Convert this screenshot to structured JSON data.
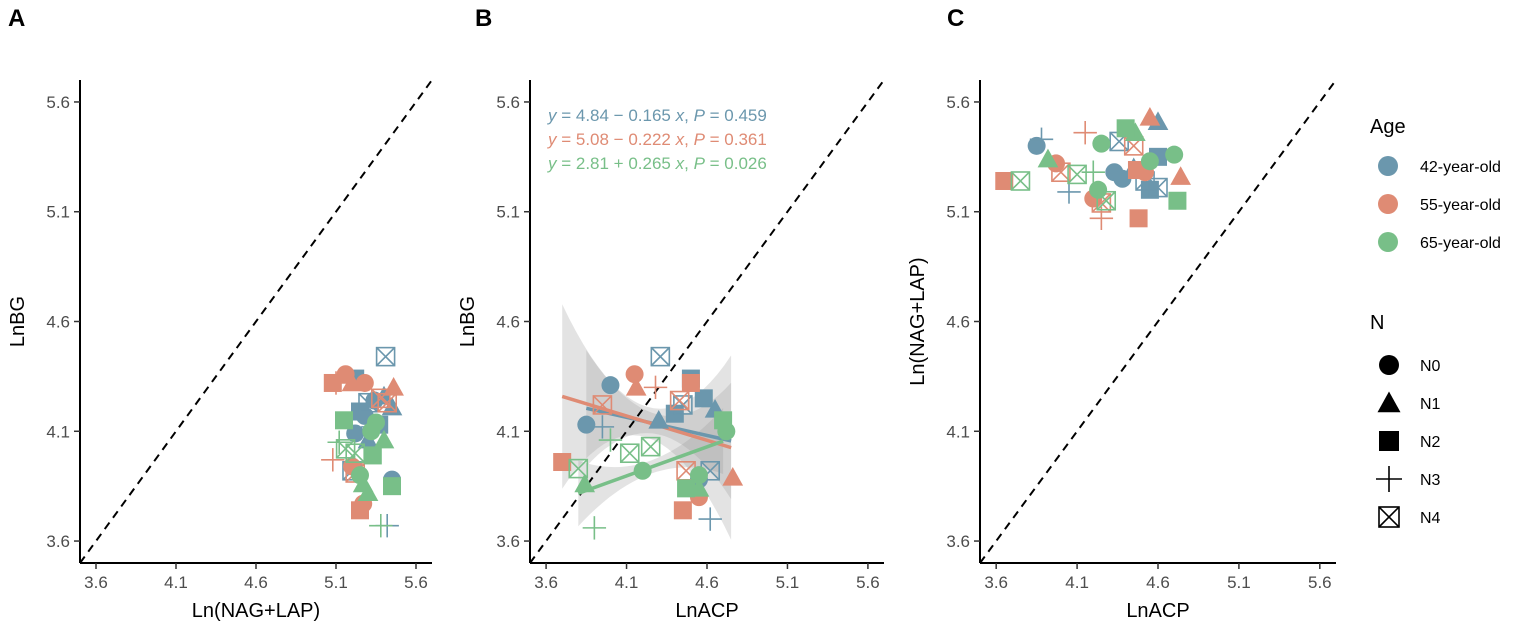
{
  "colors": {
    "42": "#6b97ad",
    "55": "#df8b74",
    "65": "#78bf88",
    "ink": "#000000",
    "tick": "#4d4d4d"
  },
  "chart_data": [
    {
      "panel": "A",
      "type": "scatter",
      "xlabel": "Ln(NAG+LAP)",
      "ylabel": "LnBG",
      "xlim": [
        3.5,
        5.7
      ],
      "ylim": [
        3.5,
        5.7
      ],
      "xticks": [
        "3.6",
        "4.1",
        "4.6",
        "5.1",
        "5.6"
      ],
      "yticks": [
        "3.6",
        "4.1",
        "4.6",
        "5.1",
        "5.6"
      ],
      "reference_line": "y = x (dashed)",
      "points": [
        {
          "x": 5.34,
          "y": 4.24,
          "age": "42",
          "n": "N0"
        },
        {
          "x": 5.28,
          "y": 4.17,
          "age": "42",
          "n": "N0"
        },
        {
          "x": 5.22,
          "y": 4.09,
          "age": "42",
          "n": "N0"
        },
        {
          "x": 5.45,
          "y": 3.88,
          "age": "42",
          "n": "N0"
        },
        {
          "x": 5.4,
          "y": 4.26,
          "age": "42",
          "n": "N1"
        },
        {
          "x": 5.45,
          "y": 4.21,
          "age": "42",
          "n": "N1"
        },
        {
          "x": 5.3,
          "y": 4.06,
          "age": "42",
          "n": "N1"
        },
        {
          "x": 5.22,
          "y": 4.34,
          "age": "42",
          "n": "N2"
        },
        {
          "x": 5.25,
          "y": 4.19,
          "age": "42",
          "n": "N2"
        },
        {
          "x": 5.37,
          "y": 4.13,
          "age": "42",
          "n": "N2"
        },
        {
          "x": 5.33,
          "y": 4.12,
          "age": "42",
          "n": "N3"
        },
        {
          "x": 5.42,
          "y": 3.67,
          "age": "42",
          "n": "N3"
        },
        {
          "x": 5.41,
          "y": 4.44,
          "age": "42",
          "n": "N4"
        },
        {
          "x": 5.3,
          "y": 4.23,
          "age": "42",
          "n": "N4"
        },
        {
          "x": 5.2,
          "y": 3.92,
          "age": "42",
          "n": "N4"
        },
        {
          "x": 5.16,
          "y": 4.36,
          "age": "55",
          "n": "N0"
        },
        {
          "x": 5.28,
          "y": 4.32,
          "age": "55",
          "n": "N0"
        },
        {
          "x": 5.2,
          "y": 3.94,
          "age": "55",
          "n": "N0"
        },
        {
          "x": 5.27,
          "y": 3.77,
          "age": "55",
          "n": "N0"
        },
        {
          "x": 5.2,
          "y": 4.32,
          "age": "55",
          "n": "N1"
        },
        {
          "x": 5.46,
          "y": 4.3,
          "age": "55",
          "n": "N1"
        },
        {
          "x": 5.08,
          "y": 4.32,
          "age": "55",
          "n": "N2"
        },
        {
          "x": 5.25,
          "y": 3.74,
          "age": "55",
          "n": "N2"
        },
        {
          "x": 5.1,
          "y": 4.32,
          "age": "55",
          "n": "N3"
        },
        {
          "x": 5.08,
          "y": 3.97,
          "age": "55",
          "n": "N3"
        },
        {
          "x": 5.38,
          "y": 4.25,
          "age": "55",
          "n": "N4"
        },
        {
          "x": 5.42,
          "y": 4.23,
          "age": "55",
          "n": "N4"
        },
        {
          "x": 5.22,
          "y": 3.91,
          "age": "55",
          "n": "N4"
        },
        {
          "x": 5.35,
          "y": 4.14,
          "age": "65",
          "n": "N0"
        },
        {
          "x": 5.32,
          "y": 4.1,
          "age": "65",
          "n": "N0"
        },
        {
          "x": 5.25,
          "y": 3.9,
          "age": "65",
          "n": "N0"
        },
        {
          "x": 5.4,
          "y": 4.06,
          "age": "65",
          "n": "N1"
        },
        {
          "x": 5.27,
          "y": 3.86,
          "age": "65",
          "n": "N1"
        },
        {
          "x": 5.3,
          "y": 3.82,
          "age": "65",
          "n": "N1"
        },
        {
          "x": 5.15,
          "y": 4.15,
          "age": "65",
          "n": "N2"
        },
        {
          "x": 5.33,
          "y": 3.99,
          "age": "65",
          "n": "N2"
        },
        {
          "x": 5.45,
          "y": 3.85,
          "age": "65",
          "n": "N2"
        },
        {
          "x": 5.12,
          "y": 4.05,
          "age": "65",
          "n": "N3"
        },
        {
          "x": 5.38,
          "y": 3.67,
          "age": "65",
          "n": "N3"
        },
        {
          "x": 5.16,
          "y": 4.02,
          "age": "65",
          "n": "N4"
        },
        {
          "x": 5.22,
          "y": 4.0,
          "age": "65",
          "n": "N4"
        }
      ]
    },
    {
      "panel": "B",
      "type": "scatter",
      "xlabel": "LnACP",
      "ylabel": "LnBG",
      "xlim": [
        3.5,
        5.7
      ],
      "ylim": [
        3.5,
        5.7
      ],
      "xticks": [
        "3.6",
        "4.1",
        "4.6",
        "5.1",
        "5.6"
      ],
      "yticks": [
        "3.6",
        "4.1",
        "4.6",
        "5.1",
        "5.6"
      ],
      "reference_line": "y = x (dashed)",
      "regressions": [
        {
          "age": "42",
          "intercept": 4.84,
          "slope": -0.165,
          "x_range": [
            3.85,
            4.75
          ],
          "ci_halfwidth": [
            0.22,
            0.18
          ]
        },
        {
          "age": "55",
          "intercept": 5.08,
          "slope": -0.222,
          "x_range": [
            3.7,
            4.75
          ],
          "ci_halfwidth": [
            0.35,
            0.28
          ]
        },
        {
          "age": "65",
          "intercept": 2.81,
          "slope": 0.265,
          "x_range": [
            3.8,
            4.7
          ],
          "ci_halfwidth": [
            0.12,
            0.12
          ]
        }
      ],
      "equations": [
        {
          "age": "42",
          "y": "y",
          "eq": " = 4.84 − 0.165 ",
          "x": "x",
          "p": "P",
          "pval": " = 0.459"
        },
        {
          "age": "55",
          "y": "y",
          "eq": " = 5.08 − 0.222 ",
          "x": "x",
          "p": "P",
          "pval": " = 0.361"
        },
        {
          "age": "65",
          "y": "y",
          "eq": " = 2.81 + 0.265 ",
          "x": "x",
          "p": "P",
          "pval": " = 0.026"
        }
      ],
      "points": [
        {
          "x": 4.0,
          "y": 4.31,
          "age": "42",
          "n": "N0"
        },
        {
          "x": 3.85,
          "y": 4.13,
          "age": "42",
          "n": "N0"
        },
        {
          "x": 4.55,
          "y": 3.88,
          "age": "42",
          "n": "N0"
        },
        {
          "x": 4.3,
          "y": 4.15,
          "age": "42",
          "n": "N1"
        },
        {
          "x": 4.65,
          "y": 4.2,
          "age": "42",
          "n": "N1"
        },
        {
          "x": 4.5,
          "y": 4.34,
          "age": "42",
          "n": "N2"
        },
        {
          "x": 4.58,
          "y": 4.25,
          "age": "42",
          "n": "N2"
        },
        {
          "x": 4.4,
          "y": 4.18,
          "age": "42",
          "n": "N2"
        },
        {
          "x": 3.95,
          "y": 4.12,
          "age": "42",
          "n": "N3"
        },
        {
          "x": 4.62,
          "y": 3.7,
          "age": "42",
          "n": "N3"
        },
        {
          "x": 4.31,
          "y": 4.44,
          "age": "42",
          "n": "N4"
        },
        {
          "x": 4.62,
          "y": 3.92,
          "age": "42",
          "n": "N4"
        },
        {
          "x": 4.45,
          "y": 4.22,
          "age": "42",
          "n": "N4"
        },
        {
          "x": 4.15,
          "y": 4.36,
          "age": "55",
          "n": "N0"
        },
        {
          "x": 4.55,
          "y": 3.8,
          "age": "55",
          "n": "N0"
        },
        {
          "x": 4.16,
          "y": 4.3,
          "age": "55",
          "n": "N1"
        },
        {
          "x": 4.76,
          "y": 3.89,
          "age": "55",
          "n": "N1"
        },
        {
          "x": 3.7,
          "y": 3.96,
          "age": "55",
          "n": "N2"
        },
        {
          "x": 4.5,
          "y": 4.32,
          "age": "55",
          "n": "N2"
        },
        {
          "x": 4.45,
          "y": 3.74,
          "age": "55",
          "n": "N2"
        },
        {
          "x": 4.28,
          "y": 4.3,
          "age": "55",
          "n": "N3"
        },
        {
          "x": 4.43,
          "y": 4.24,
          "age": "55",
          "n": "N4"
        },
        {
          "x": 3.95,
          "y": 4.22,
          "age": "55",
          "n": "N4"
        },
        {
          "x": 4.47,
          "y": 3.92,
          "age": "55",
          "n": "N4"
        },
        {
          "x": 4.2,
          "y": 3.92,
          "age": "65",
          "n": "N0"
        },
        {
          "x": 4.72,
          "y": 4.1,
          "age": "65",
          "n": "N0"
        },
        {
          "x": 4.55,
          "y": 3.9,
          "age": "65",
          "n": "N0"
        },
        {
          "x": 3.84,
          "y": 3.86,
          "age": "65",
          "n": "N1"
        },
        {
          "x": 4.55,
          "y": 3.84,
          "age": "65",
          "n": "N1"
        },
        {
          "x": 4.7,
          "y": 4.15,
          "age": "65",
          "n": "N2"
        },
        {
          "x": 4.47,
          "y": 3.84,
          "age": "65",
          "n": "N2"
        },
        {
          "x": 3.9,
          "y": 3.66,
          "age": "65",
          "n": "N3"
        },
        {
          "x": 4.0,
          "y": 4.06,
          "age": "65",
          "n": "N3"
        },
        {
          "x": 3.8,
          "y": 3.93,
          "age": "65",
          "n": "N4"
        },
        {
          "x": 4.12,
          "y": 4.0,
          "age": "65",
          "n": "N4"
        },
        {
          "x": 4.25,
          "y": 4.03,
          "age": "65",
          "n": "N4"
        }
      ]
    },
    {
      "panel": "C",
      "type": "scatter",
      "xlabel": "LnACP",
      "ylabel": "Ln(NAG+LAP)",
      "xlim": [
        3.5,
        5.7
      ],
      "ylim": [
        3.5,
        5.7
      ],
      "xticks": [
        "3.6",
        "4.1",
        "4.6",
        "5.1",
        "5.6"
      ],
      "yticks": [
        "3.6",
        "4.1",
        "4.6",
        "5.1",
        "5.6"
      ],
      "reference_line": "y = x (dashed)",
      "points": [
        {
          "x": 3.85,
          "y": 5.4,
          "age": "42",
          "n": "N0"
        },
        {
          "x": 4.33,
          "y": 5.28,
          "age": "42",
          "n": "N0"
        },
        {
          "x": 4.38,
          "y": 5.25,
          "age": "42",
          "n": "N0"
        },
        {
          "x": 4.6,
          "y": 5.51,
          "age": "42",
          "n": "N1"
        },
        {
          "x": 4.45,
          "y": 5.3,
          "age": "42",
          "n": "N1"
        },
        {
          "x": 4.55,
          "y": 5.2,
          "age": "42",
          "n": "N2"
        },
        {
          "x": 4.6,
          "y": 5.35,
          "age": "42",
          "n": "N2"
        },
        {
          "x": 3.88,
          "y": 5.43,
          "age": "42",
          "n": "N3"
        },
        {
          "x": 4.05,
          "y": 5.19,
          "age": "42",
          "n": "N3"
        },
        {
          "x": 4.36,
          "y": 5.42,
          "age": "42",
          "n": "N4"
        },
        {
          "x": 4.52,
          "y": 5.24,
          "age": "42",
          "n": "N4"
        },
        {
          "x": 4.6,
          "y": 5.21,
          "age": "42",
          "n": "N4"
        },
        {
          "x": 3.97,
          "y": 5.32,
          "age": "55",
          "n": "N0"
        },
        {
          "x": 4.52,
          "y": 5.28,
          "age": "55",
          "n": "N0"
        },
        {
          "x": 4.2,
          "y": 5.16,
          "age": "55",
          "n": "N0"
        },
        {
          "x": 4.55,
          "y": 5.53,
          "age": "55",
          "n": "N1"
        },
        {
          "x": 4.74,
          "y": 5.26,
          "age": "55",
          "n": "N1"
        },
        {
          "x": 3.65,
          "y": 5.24,
          "age": "55",
          "n": "N2"
        },
        {
          "x": 4.48,
          "y": 5.07,
          "age": "55",
          "n": "N2"
        },
        {
          "x": 4.47,
          "y": 5.29,
          "age": "55",
          "n": "N2"
        },
        {
          "x": 4.15,
          "y": 5.46,
          "age": "55",
          "n": "N3"
        },
        {
          "x": 4.25,
          "y": 5.07,
          "age": "55",
          "n": "N3"
        },
        {
          "x": 4.0,
          "y": 5.28,
          "age": "55",
          "n": "N4"
        },
        {
          "x": 4.45,
          "y": 5.4,
          "age": "55",
          "n": "N4"
        },
        {
          "x": 4.25,
          "y": 5.14,
          "age": "55",
          "n": "N4"
        },
        {
          "x": 4.25,
          "y": 5.41,
          "age": "65",
          "n": "N0"
        },
        {
          "x": 4.7,
          "y": 5.36,
          "age": "65",
          "n": "N0"
        },
        {
          "x": 4.55,
          "y": 5.33,
          "age": "65",
          "n": "N0"
        },
        {
          "x": 4.23,
          "y": 5.2,
          "age": "65",
          "n": "N0"
        },
        {
          "x": 3.92,
          "y": 5.34,
          "age": "65",
          "n": "N1"
        },
        {
          "x": 4.46,
          "y": 5.46,
          "age": "65",
          "n": "N1"
        },
        {
          "x": 4.4,
          "y": 5.48,
          "age": "65",
          "n": "N2"
        },
        {
          "x": 4.72,
          "y": 5.15,
          "age": "65",
          "n": "N2"
        },
        {
          "x": 4.2,
          "y": 5.28,
          "age": "65",
          "n": "N3"
        },
        {
          "x": 3.75,
          "y": 5.24,
          "age": "65",
          "n": "N4"
        },
        {
          "x": 4.1,
          "y": 5.27,
          "age": "65",
          "n": "N4"
        },
        {
          "x": 4.28,
          "y": 5.15,
          "age": "65",
          "n": "N4"
        }
      ]
    }
  ],
  "legend": {
    "age_title": "Age",
    "age_items": [
      {
        "key": "42",
        "label": "42-year-old"
      },
      {
        "key": "55",
        "label": "55-year-old"
      },
      {
        "key": "65",
        "label": "65-year-old"
      }
    ],
    "n_title": "N",
    "n_items": [
      {
        "shape": "N0",
        "label": "N0"
      },
      {
        "shape": "N1",
        "label": "N1"
      },
      {
        "shape": "N2",
        "label": "N2"
      },
      {
        "shape": "N3",
        "label": "N3"
      },
      {
        "shape": "N4",
        "label": "N4"
      }
    ]
  }
}
